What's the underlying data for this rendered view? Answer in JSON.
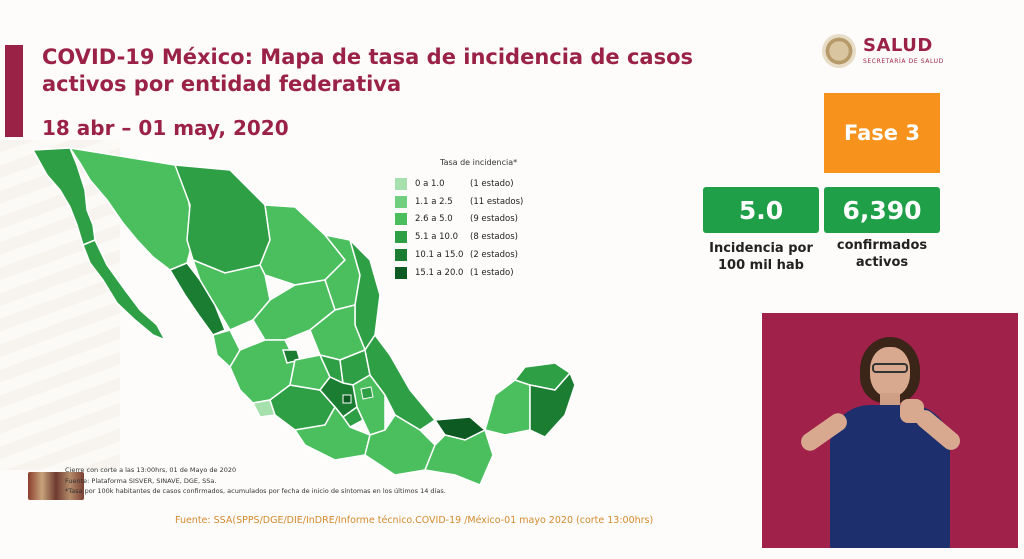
{
  "header": {
    "title": "COVID-19 México: Mapa de tasa de incidencia de casos activos por entidad federativa",
    "date_range": "18 abr – 01 may, 2020"
  },
  "logo": {
    "name": "SALUD",
    "subtitle": "SECRETARÍA DE SALUD"
  },
  "phase": {
    "label": "Fase 3",
    "color": "#f7931d"
  },
  "stats": [
    {
      "value": "5.0",
      "label_line1": "Incidencia por",
      "label_line2": "100 mil hab",
      "color": "#1e9f48"
    },
    {
      "value": "6,390",
      "label_line1": "confirmados",
      "label_line2": "activos",
      "color": "#1e9f48"
    }
  ],
  "legend": {
    "title": "Tasa de incidencia*",
    "items": [
      {
        "range": "0 a 1.0",
        "count": "(1 estado)",
        "color": "#a6e0ad"
      },
      {
        "range": "1.1 a 2.5",
        "count": "(11 estados)",
        "color": "#6fcf7e"
      },
      {
        "range": "2.6 a 5.0",
        "count": "(9 estados)",
        "color": "#4bbf5e"
      },
      {
        "range": "5.1 a 10.0",
        "count": "(8 estados)",
        "color": "#2f9f45"
      },
      {
        "range": "10.1 a 15.0",
        "count": "(2 estados)",
        "color": "#1b7d32"
      },
      {
        "range": "15.1 a 20.0",
        "count": "(1 estado)",
        "color": "#0d5a22"
      }
    ]
  },
  "notes": {
    "line1": "Cierre con corte a las 13:00hrs, 01 de Mayo de 2020",
    "line2": "Fuente: Plataforma SISVER, SINAVE, DGE, SSa.",
    "line3": "*Tasa por 100k habitantes de casos confirmados, acumulados por fecha de inicio de síntomas en los últimos 14 días."
  },
  "source": "Fuente: SSA(SPPS/DGE/DIE/InDRE/Informe técnico.COVID-19 /México-01 mayo 2020 (corte 13:00hrs)",
  "colors": {
    "brand": "#9b2247",
    "accent": "#f7931d",
    "stat_green": "#1e9f48",
    "interpreter_bg": "#a0214a"
  }
}
